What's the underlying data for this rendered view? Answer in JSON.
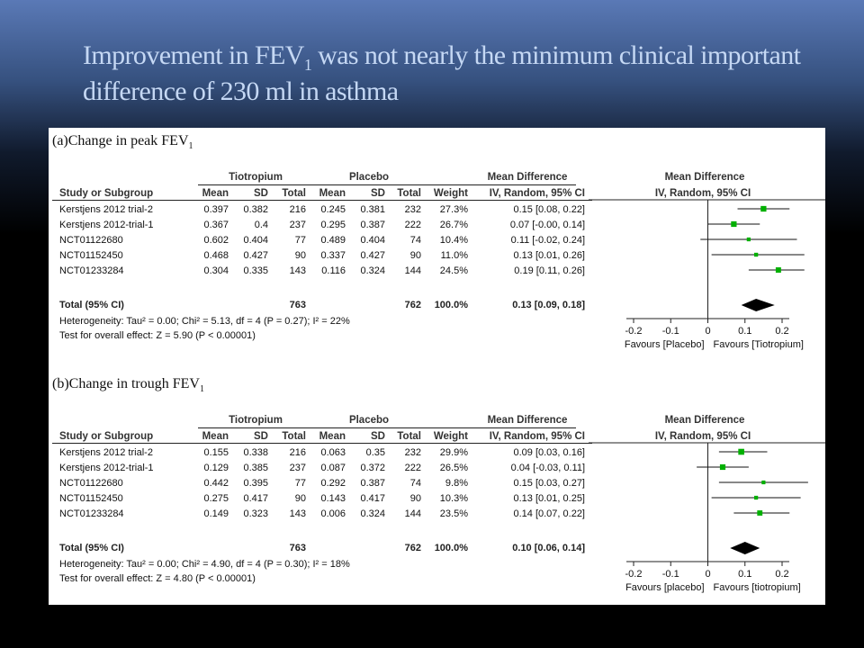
{
  "slide": {
    "title_part1": "Improvement  in FEV",
    "title_sub": "1",
    "title_part2": " was not nearly the minimum clinical important difference of 230 ml in asthma"
  },
  "chart_data": [
    {
      "type": "table",
      "title": "(a)Change in peak FEV",
      "title_sub": "1",
      "group_headers": [
        "Tiotropium",
        "Placebo",
        "Mean Difference",
        "Mean Difference"
      ],
      "columns": [
        "Study or Subgroup",
        "Mean",
        "SD",
        "Total",
        "Mean",
        "SD",
        "Total",
        "Weight",
        "IV, Random, 95% CI",
        "IV, Random, 95% CI"
      ],
      "rows": [
        {
          "study": "Kerstjens 2012 trial-2",
          "t_mean": "0.397",
          "t_sd": "0.382",
          "t_total": "216",
          "p_mean": "0.245",
          "p_sd": "0.381",
          "p_total": "232",
          "weight": "27.3%",
          "ci_text": "0.15 [0.08, 0.22]",
          "md": 0.15,
          "lo": 0.08,
          "hi": 0.22
        },
        {
          "study": "Kerstjens 2012-trial-1",
          "t_mean": "0.367",
          "t_sd": "0.4",
          "t_total": "237",
          "p_mean": "0.295",
          "p_sd": "0.387",
          "p_total": "222",
          "weight": "26.7%",
          "ci_text": "0.07 [-0.00, 0.14]",
          "md": 0.07,
          "lo": -0.0,
          "hi": 0.14
        },
        {
          "study": "NCT01122680",
          "t_mean": "0.602",
          "t_sd": "0.404",
          "t_total": "77",
          "p_mean": "0.489",
          "p_sd": "0.404",
          "p_total": "74",
          "weight": "10.4%",
          "ci_text": "0.11 [-0.02, 0.24]",
          "md": 0.11,
          "lo": -0.02,
          "hi": 0.24
        },
        {
          "study": "NCT01152450",
          "t_mean": "0.468",
          "t_sd": "0.427",
          "t_total": "90",
          "p_mean": "0.337",
          "p_sd": "0.427",
          "p_total": "90",
          "weight": "11.0%",
          "ci_text": "0.13 [0.01, 0.26]",
          "md": 0.13,
          "lo": 0.01,
          "hi": 0.26
        },
        {
          "study": "NCT01233284",
          "t_mean": "0.304",
          "t_sd": "0.335",
          "t_total": "143",
          "p_mean": "0.116",
          "p_sd": "0.324",
          "p_total": "144",
          "weight": "24.5%",
          "ci_text": "0.19 [0.11, 0.26]",
          "md": 0.19,
          "lo": 0.11,
          "hi": 0.26
        }
      ],
      "total": {
        "label": "Total (95% CI)",
        "t_total": "763",
        "p_total": "762",
        "weight": "100.0%",
        "ci_text": "0.13 [0.09, 0.18]",
        "md": 0.13,
        "lo": 0.09,
        "hi": 0.18
      },
      "heterogeneity": "Heterogeneity: Tau² = 0.00; Chi² = 5.13, df = 4 (P = 0.27); I² = 22%",
      "overall_effect": "Test for overall effect: Z = 5.90 (P < 0.00001)",
      "axis": {
        "ticks": [
          -0.2,
          -0.1,
          0,
          0.1,
          0.2
        ],
        "tick_labels": [
          "-0.2",
          "-0.1",
          "0",
          "0.1",
          "0.2"
        ],
        "xlim": [
          -0.2,
          0.2
        ]
      },
      "favours_left": "Favours [Placebo]",
      "favours_right": "Favours [Tiotropium]",
      "marker_color": "#00b000"
    },
    {
      "type": "table",
      "title": "(b)Change in trough FEV",
      "title_sub": "1",
      "group_headers": [
        "Tiotropium",
        "Placebo",
        "Mean Difference",
        "Mean Difference"
      ],
      "columns": [
        "Study or Subgroup",
        "Mean",
        "SD",
        "Total",
        "Mean",
        "SD",
        "Total",
        "Weight",
        "IV, Random, 95% CI",
        "IV, Random, 95% CI"
      ],
      "rows": [
        {
          "study": "Kerstjens 2012 trial-2",
          "t_mean": "0.155",
          "t_sd": "0.338",
          "t_total": "216",
          "p_mean": "0.063",
          "p_sd": "0.35",
          "p_total": "232",
          "weight": "29.9%",
          "ci_text": "0.09 [0.03, 0.16]",
          "md": 0.09,
          "lo": 0.03,
          "hi": 0.16
        },
        {
          "study": "Kerstjens 2012-trial-1",
          "t_mean": "0.129",
          "t_sd": "0.385",
          "t_total": "237",
          "p_mean": "0.087",
          "p_sd": "0.372",
          "p_total": "222",
          "weight": "26.5%",
          "ci_text": "0.04 [-0.03, 0.11]",
          "md": 0.04,
          "lo": -0.03,
          "hi": 0.11
        },
        {
          "study": "NCT01122680",
          "t_mean": "0.442",
          "t_sd": "0.395",
          "t_total": "77",
          "p_mean": "0.292",
          "p_sd": "0.387",
          "p_total": "74",
          "weight": "9.8%",
          "ci_text": "0.15 [0.03, 0.27]",
          "md": 0.15,
          "lo": 0.03,
          "hi": 0.27
        },
        {
          "study": "NCT01152450",
          "t_mean": "0.275",
          "t_sd": "0.417",
          "t_total": "90",
          "p_mean": "0.143",
          "p_sd": "0.417",
          "p_total": "90",
          "weight": "10.3%",
          "ci_text": "0.13 [0.01, 0.25]",
          "md": 0.13,
          "lo": 0.01,
          "hi": 0.25
        },
        {
          "study": "NCT01233284",
          "t_mean": "0.149",
          "t_sd": "0.323",
          "t_total": "143",
          "p_mean": "0.006",
          "p_sd": "0.324",
          "p_total": "144",
          "weight": "23.5%",
          "ci_text": "0.14 [0.07, 0.22]",
          "md": 0.14,
          "lo": 0.07,
          "hi": 0.22
        }
      ],
      "total": {
        "label": "Total (95% CI)",
        "t_total": "763",
        "p_total": "762",
        "weight": "100.0%",
        "ci_text": "0.10 [0.06, 0.14]",
        "md": 0.1,
        "lo": 0.06,
        "hi": 0.14
      },
      "heterogeneity": "Heterogeneity: Tau² = 0.00; Chi² = 4.90, df = 4 (P = 0.30); I² = 18%",
      "overall_effect": "Test for overall effect: Z = 4.80 (P < 0.00001)",
      "axis": {
        "ticks": [
          -0.2,
          -0.1,
          0,
          0.1,
          0.2
        ],
        "tick_labels": [
          "-0.2",
          "-0.1",
          "0",
          "0.1",
          "0.2"
        ],
        "xlim": [
          -0.2,
          0.2
        ]
      },
      "favours_left": "Favours [placebo]",
      "favours_right": "Favours [tiotropium]",
      "marker_color": "#00b000"
    }
  ]
}
